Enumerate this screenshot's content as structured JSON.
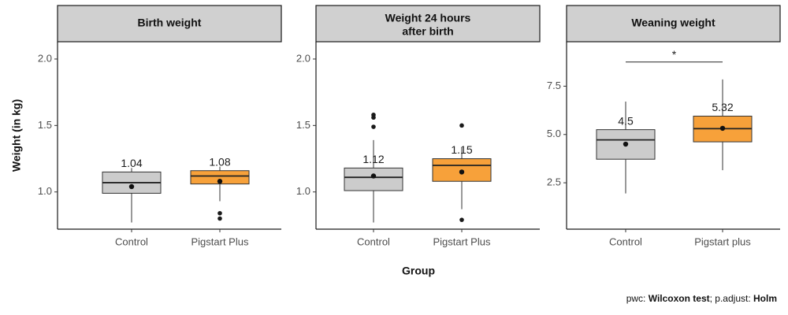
{
  "chart_data": {
    "type": "boxplot",
    "ylabel": "Weight (in kg)",
    "xlabel": "Group",
    "caption": {
      "prefix": "pwc: ",
      "test": "Wilcoxon test",
      "middle": "; p.adjust: ",
      "method": "Holm"
    },
    "colors": {
      "control": "#cccccc",
      "treatment": "#f7a13a",
      "strip": "#d0d0d0"
    },
    "panels": [
      {
        "title_lines": [
          "Birth weight"
        ],
        "ylim": [
          0.72,
          2.13
        ],
        "yticks": [
          1.0,
          1.5,
          2.0
        ],
        "ytick_labels": [
          "1.0",
          "1.5",
          "2.0"
        ],
        "groups": [
          {
            "label": "Control",
            "color": "control",
            "whisker_low": 0.77,
            "q1": 0.99,
            "median": 1.07,
            "q3": 1.15,
            "whisker_high": 1.18,
            "mean": 1.04,
            "mean_label": "1.04",
            "outliers": []
          },
          {
            "label": "Pigstart Plus",
            "color": "treatment",
            "whisker_low": 0.93,
            "q1": 1.06,
            "median": 1.12,
            "q3": 1.16,
            "whisker_high": 1.19,
            "mean": 1.08,
            "mean_label": "1.08",
            "outliers": [
              0.8,
              0.84
            ]
          }
        ]
      },
      {
        "title_lines": [
          "Weight 24 hours",
          "after birth"
        ],
        "ylim": [
          0.72,
          2.13
        ],
        "yticks": [
          1.0,
          1.5,
          2.0
        ],
        "ytick_labels": [
          "1.0",
          "1.5",
          "2.0"
        ],
        "groups": [
          {
            "label": "Control",
            "color": "control",
            "whisker_low": 0.77,
            "q1": 1.01,
            "median": 1.11,
            "q3": 1.18,
            "whisker_high": 1.39,
            "mean": 1.12,
            "mean_label": "1.12",
            "outliers": [
              1.49,
              1.56,
              1.58
            ]
          },
          {
            "label": "Pigstart Plus",
            "color": "treatment",
            "whisker_low": 0.87,
            "q1": 1.08,
            "median": 1.2,
            "q3": 1.25,
            "whisker_high": 1.33,
            "mean": 1.15,
            "mean_label": "1.15",
            "outliers": [
              0.79,
              1.5
            ]
          }
        ]
      },
      {
        "title_lines": [
          "Weaning weight"
        ],
        "ylim": [
          0.1,
          9.8
        ],
        "yticks": [
          2.5,
          5.0,
          7.5
        ],
        "ytick_labels": [
          "2.5",
          "5.0",
          "7.5"
        ],
        "groups": [
          {
            "label": "Control",
            "color": "control",
            "whisker_low": 1.95,
            "q1": 3.72,
            "median": 4.72,
            "q3": 5.25,
            "whisker_high": 6.7,
            "mean": 4.5,
            "mean_label": "4.5",
            "outliers": []
          },
          {
            "label": "Pigstart plus",
            "color": "treatment",
            "whisker_low": 3.15,
            "q1": 4.62,
            "median": 5.3,
            "q3": 5.95,
            "whisker_high": 7.85,
            "mean": 5.32,
            "mean_label": "5.32",
            "outliers": []
          }
        ],
        "significance": {
          "y": 8.75,
          "label": "*"
        }
      }
    ]
  }
}
